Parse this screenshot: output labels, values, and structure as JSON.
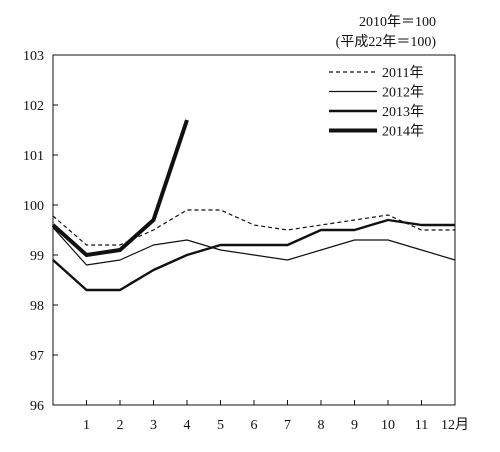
{
  "notes": {
    "base": "2010年＝100",
    "base_sub": "(平成22年＝100)"
  },
  "chart_data": {
    "type": "line",
    "title": "",
    "xlabel": "",
    "ylabel": "",
    "categories": [
      1,
      2,
      3,
      4,
      5,
      6,
      7,
      8,
      9,
      10,
      11,
      12
    ],
    "x_tick_labels": [
      "1",
      "2",
      "3",
      "4",
      "5",
      "6",
      "7",
      "8",
      "9",
      "10",
      "11",
      "12月"
    ],
    "y_tick_labels": [
      "96",
      "97",
      "98",
      "99",
      "100",
      "101",
      "102",
      "103"
    ],
    "ylim": [
      96,
      103
    ],
    "xlim": [
      0,
      12
    ],
    "grid": false,
    "legend_position": "top-right",
    "series": [
      {
        "name": "2011年",
        "style": "dashed",
        "color": "#111111",
        "x": [
          0,
          1,
          2,
          3,
          4,
          5,
          6,
          7,
          8,
          9,
          10,
          11,
          12
        ],
        "values": [
          99.78,
          99.2,
          99.2,
          99.5,
          99.9,
          99.9,
          99.6,
          99.5,
          99.6,
          99.7,
          99.8,
          99.5,
          99.5
        ]
      },
      {
        "name": "2012年",
        "style": "thin",
        "color": "#111111",
        "x": [
          0,
          1,
          2,
          3,
          4,
          5,
          6,
          7,
          8,
          9,
          10,
          11,
          12
        ],
        "values": [
          99.55,
          98.8,
          98.9,
          99.2,
          99.3,
          99.1,
          99.0,
          98.9,
          99.1,
          99.3,
          99.3,
          99.1,
          98.9
        ]
      },
      {
        "name": "2013年",
        "style": "medium",
        "color": "#111111",
        "x": [
          0,
          1,
          2,
          3,
          4,
          5,
          6,
          7,
          8,
          9,
          10,
          11,
          12
        ],
        "values": [
          98.9,
          98.3,
          98.3,
          98.7,
          99.0,
          99.2,
          99.2,
          99.2,
          99.5,
          99.5,
          99.7,
          99.6,
          99.6
        ]
      },
      {
        "name": "2014年",
        "style": "thick",
        "color": "#111111",
        "x": [
          0,
          1,
          2,
          3,
          4
        ],
        "values": [
          99.6,
          99.0,
          99.1,
          99.7,
          101.7
        ]
      }
    ]
  }
}
